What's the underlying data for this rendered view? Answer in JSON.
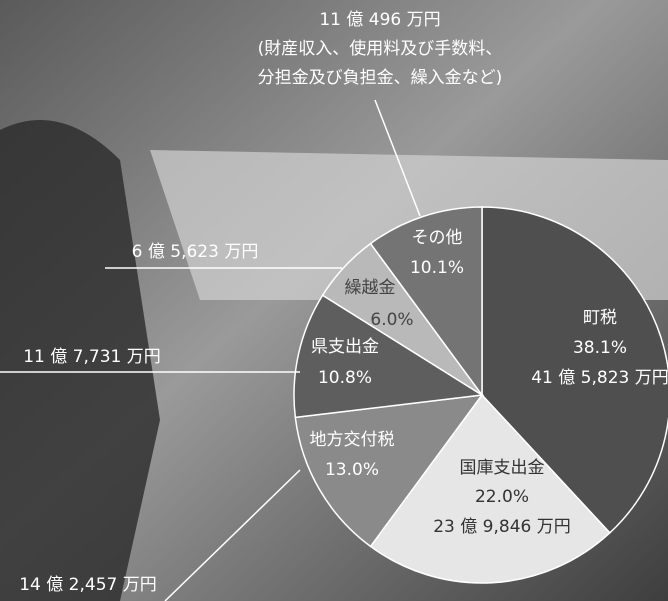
{
  "chart_data": {
    "type": "pie",
    "categories": [
      "町税",
      "国庫支出金",
      "地方交付税",
      "県支出金",
      "繰越金",
      "その他"
    ],
    "values": [
      38.1,
      22.0,
      13.0,
      10.8,
      6.0,
      10.1
    ],
    "value_labels": [
      "38.1%",
      "22.0%",
      "13.0%",
      "10.8%",
      "6.0%",
      "10.1%"
    ],
    "amount_labels": [
      "41 億 5,823 万円",
      "23 億 9,846 万円",
      "14 億 2,457 万円",
      "11 億 7,731 万円",
      "6 億 5,623 万円",
      "11 億 496 万円"
    ],
    "colors": [
      "#4f4f4f",
      "#e6e6e6",
      "#8a8a8a",
      "#5e5e5e",
      "#b9b9b9",
      "#747474"
    ],
    "note": [
      "(財産収入、使用料及び手数料、",
      "分担金及び負担金、繰入金など)"
    ]
  }
}
